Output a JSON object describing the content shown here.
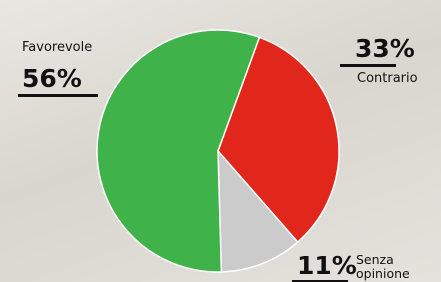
{
  "chart_data": {
    "type": "pie",
    "categories": [
      "Contrario",
      "Senza opinione",
      "Favorevole"
    ],
    "values": [
      33,
      11,
      56
    ],
    "value_labels": [
      "33%",
      "11%",
      "56%"
    ],
    "colors": [
      "#e1261c",
      "#cbcbcb",
      "#3fb34a"
    ]
  }
}
